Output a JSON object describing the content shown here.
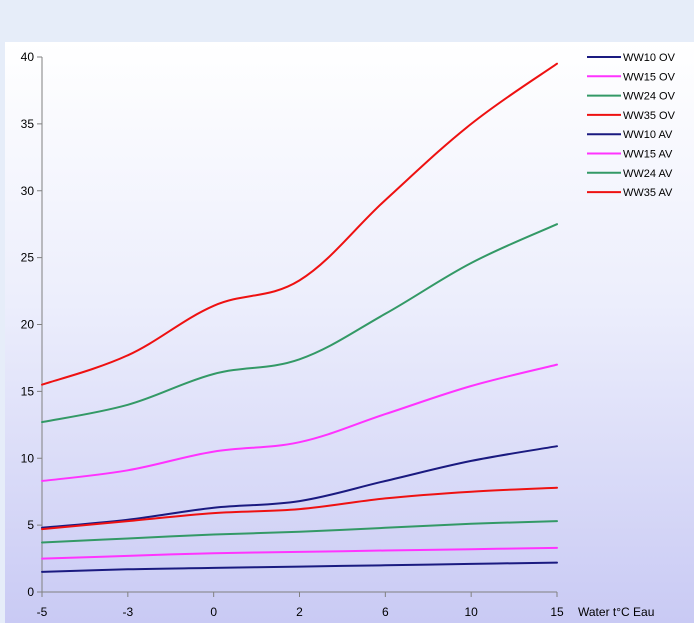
{
  "chart_data": {
    "type": "line",
    "title": "",
    "xlabel": "Water t°C Eau",
    "ylabel": "",
    "categories": [
      "-5",
      "-3",
      "0",
      "2",
      "6",
      "10",
      "15"
    ],
    "yticks": [
      "0",
      "5",
      "10",
      "15",
      "20",
      "25",
      "30",
      "35",
      "40"
    ],
    "ylim": [
      0,
      40
    ],
    "grid": false,
    "legend_position": "top-right",
    "series": [
      {
        "name": "WW10 OV",
        "color": "#1a1a80",
        "values": [
          4.8,
          5.4,
          6.3,
          6.8,
          8.3,
          9.8,
          10.9
        ]
      },
      {
        "name": "WW15 OV",
        "color": "#ff33ff",
        "values": [
          8.3,
          9.1,
          10.5,
          11.2,
          13.3,
          15.4,
          17.0
        ]
      },
      {
        "name": "WW24 OV",
        "color": "#339966",
        "values": [
          12.7,
          14.0,
          16.3,
          17.4,
          20.8,
          24.6,
          27.5
        ]
      },
      {
        "name": "WW35 OV",
        "color": "#ee1111",
        "values": [
          15.5,
          17.7,
          21.4,
          23.3,
          29.3,
          35.0,
          39.5
        ]
      },
      {
        "name": "WW10 AV",
        "color": "#1a1a80",
        "values": [
          1.5,
          1.7,
          1.8,
          1.9,
          2.0,
          2.1,
          2.2
        ]
      },
      {
        "name": "WW15 AV",
        "color": "#ff33ff",
        "values": [
          2.5,
          2.7,
          2.9,
          3.0,
          3.1,
          3.2,
          3.3
        ]
      },
      {
        "name": "WW24 AV",
        "color": "#339966",
        "values": [
          3.7,
          4.0,
          4.3,
          4.5,
          4.8,
          5.1,
          5.3
        ]
      },
      {
        "name": "WW35 AV",
        "color": "#ee1111",
        "values": [
          4.7,
          5.3,
          5.9,
          6.2,
          7.0,
          7.5,
          7.8
        ]
      }
    ]
  }
}
